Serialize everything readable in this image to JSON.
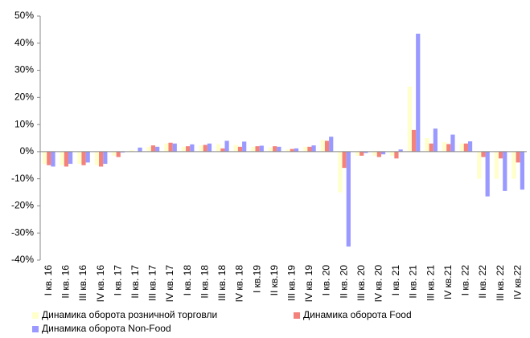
{
  "chart_data": {
    "type": "bar",
    "categories": [
      "I кв. 16",
      "II кв. 16",
      "III кв. 16",
      "IV кв. 16",
      "I кв. 17",
      "II кв. 17",
      "III кв. 17",
      "IV кв. 17",
      "I кв. 18",
      "II кв. 18",
      "III кв. 18",
      "IV кв. 18",
      "I кв.19",
      "II кв.19",
      "III кв. 19",
      "IV кв. 19",
      "I кв. 20",
      "II кв. 20",
      "III кв. 20",
      "IV кв. 20",
      "I кв. 21",
      "II кв. 21",
      "III кв. 21",
      "IV кв.21",
      "I кв. 22",
      "II кв. 22",
      "III кв. 22",
      "IV кв.22"
    ],
    "series": [
      {
        "name": "Динамика оборота розничной торговли",
        "color": "#ffffcc",
        "values": [
          -4.5,
          -5,
          -4.5,
          -5,
          -1.5,
          0.5,
          1.8,
          3,
          1.8,
          2.3,
          2.8,
          2.5,
          1.8,
          1.6,
          0.8,
          1.8,
          4.3,
          -15,
          -1.5,
          -1.5,
          -1.5,
          24,
          5,
          3.5,
          3,
          -10,
          -10,
          -10
        ]
      },
      {
        "name": "Динамика оборота Food",
        "color": "#f4827c",
        "values": [
          -5,
          -5.5,
          -5,
          -5.5,
          -2,
          0,
          2.3,
          3.3,
          2,
          2.5,
          1.2,
          1.8,
          2,
          2,
          1,
          1.8,
          4,
          -6,
          -1.5,
          -2,
          -2.5,
          8,
          3,
          2.8,
          3,
          -2,
          -2.5,
          -4
        ]
      },
      {
        "name": "Динамика оборота Non-Food",
        "color": "#9999ff",
        "values": [
          -5.5,
          -4.5,
          -4,
          -4.5,
          -0.3,
          1.5,
          1.8,
          3,
          2.7,
          3,
          4,
          3.7,
          2.2,
          1.8,
          1.2,
          2.3,
          5.5,
          -35,
          -0.5,
          -1,
          0.8,
          43.5,
          8.5,
          6.3,
          3.8,
          -16.5,
          -14.5,
          -14
        ]
      }
    ],
    "ylim": [
      -40,
      50
    ],
    "yticks": [
      {
        "value": -40,
        "label": "-40%"
      },
      {
        "value": -30,
        "label": "-30%"
      },
      {
        "value": -20,
        "label": "-20%"
      },
      {
        "value": -10,
        "label": "-10%"
      },
      {
        "value": 0,
        "label": "0%"
      },
      {
        "value": 10,
        "label": "10%"
      },
      {
        "value": 20,
        "label": "20%"
      },
      {
        "value": 30,
        "label": "30%"
      },
      {
        "value": 40,
        "label": "40%"
      },
      {
        "value": 50,
        "label": "50%"
      }
    ],
    "grid": false,
    "legend": "bottom"
  }
}
